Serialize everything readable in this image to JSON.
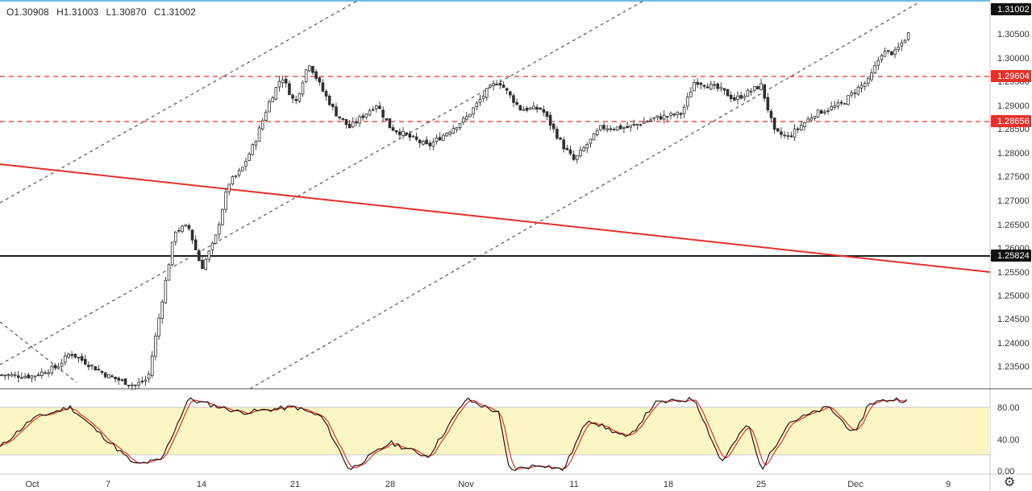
{
  "header": {
    "ohlc": {
      "open": "O1.30908",
      "high": "H1.31003",
      "low": "L1.30870",
      "close": "C1.31002"
    }
  },
  "colors": {
    "up": "#26a69a",
    "down": "#ef5350",
    "candle_body": "#2f2f2f",
    "candle_up_fill": "#ffffff",
    "trendline": "#e5312b",
    "support_line": "#1f1f1f",
    "resistance_dashed": "#e5312b",
    "channel_dashed": "#555555",
    "stoch_band": "#fbf6c3",
    "stoch_k": "#1a1a1a",
    "stoch_d": "#e5312b",
    "label_red": "#e5312b",
    "label_black": "#111111"
  },
  "price_axis": {
    "labels": [
      "1.30500",
      "1.30000",
      "1.29500",
      "1.29000",
      "1.28500",
      "1.28000",
      "1.27500",
      "1.27000",
      "1.26500",
      "1.26000",
      "1.25500",
      "1.25000",
      "1.24500",
      "1.24000",
      "1.23500"
    ],
    "badges": [
      {
        "text": "1.31002",
        "style": "black"
      },
      {
        "text": "1.29604",
        "style": "red"
      },
      {
        "text": "1.28656",
        "style": "red"
      },
      {
        "text": "1.25824",
        "style": "black"
      }
    ]
  },
  "stoch_axis": {
    "labels": [
      "80.00",
      "40.00",
      "0.00"
    ]
  },
  "time_axis": {
    "labels": [
      "Oct",
      "7",
      "14",
      "21",
      "28",
      "Nov",
      "11",
      "18",
      "25",
      "Dec",
      "9"
    ]
  },
  "chart_data": {
    "type": "candlestick",
    "symbol_pair_ohlc_last": {
      "open": 1.30908,
      "high": 1.31003,
      "low": 1.3087,
      "close": 1.31002
    },
    "ylim": [
      1.2298,
      1.3127
    ],
    "horizontal_lines": [
      {
        "price": 1.29604,
        "style": "dashed",
        "color": "red"
      },
      {
        "price": 1.28656,
        "style": "dashed",
        "color": "red"
      },
      {
        "price": 1.25824,
        "style": "solid",
        "color": "black"
      }
    ],
    "trendline": {
      "from": {
        "x": "Sep 23",
        "y": 1.2775
      },
      "to": {
        "x": "Dec 12",
        "y": 1.2548
      }
    },
    "close_path": [
      {
        "x": "Sep 26",
        "y": 1.2328
      },
      {
        "x": "Oct 1",
        "y": 1.2325
      },
      {
        "x": "Oct 3",
        "y": 1.2345
      },
      {
        "x": "Oct 4",
        "y": 1.2375
      },
      {
        "x": "Oct 7",
        "y": 1.2325
      },
      {
        "x": "Oct 9",
        "y": 1.2305
      },
      {
        "x": "Oct 10",
        "y": 1.232
      },
      {
        "x": "Oct 11",
        "y": 1.248
      },
      {
        "x": "Oct 12",
        "y": 1.2635
      },
      {
        "x": "Oct 13",
        "y": 1.2645
      },
      {
        "x": "Oct 14",
        "y": 1.2555
      },
      {
        "x": "Oct 15",
        "y": 1.2615
      },
      {
        "x": "Oct 16",
        "y": 1.2735
      },
      {
        "x": "Oct 17",
        "y": 1.2765
      },
      {
        "x": "Oct 18",
        "y": 1.2825
      },
      {
        "x": "Oct 19",
        "y": 1.2905
      },
      {
        "x": "Oct 20",
        "y": 1.2965
      },
      {
        "x": "Oct 21",
        "y": 1.2905
      },
      {
        "x": "Oct 22",
        "y": 1.2995
      },
      {
        "x": "Oct 23",
        "y": 1.2935
      },
      {
        "x": "Oct 24",
        "y": 1.2885
      },
      {
        "x": "Oct 25",
        "y": 1.2855
      },
      {
        "x": "Oct 27",
        "y": 1.2905
      },
      {
        "x": "Oct 28",
        "y": 1.2855
      },
      {
        "x": "Oct 30",
        "y": 1.2815
      },
      {
        "x": "Nov 1",
        "y": 1.2875
      },
      {
        "x": "Nov 3",
        "y": 1.2935
      },
      {
        "x": "Nov 4",
        "y": 1.2955
      },
      {
        "x": "Nov 6",
        "y": 1.2895
      },
      {
        "x": "Nov 8",
        "y": 1.2895
      },
      {
        "x": "Nov 10",
        "y": 1.2815
      },
      {
        "x": "Nov 11",
        "y": 1.2785
      },
      {
        "x": "Nov 13",
        "y": 1.2855
      },
      {
        "x": "Nov 15",
        "y": 1.2855
      },
      {
        "x": "Nov 17",
        "y": 1.2875
      },
      {
        "x": "Nov 19",
        "y": 1.2885
      },
      {
        "x": "Nov 20",
        "y": 1.2955
      },
      {
        "x": "Nov 22",
        "y": 1.2935
      },
      {
        "x": "Nov 23",
        "y": 1.2915
      },
      {
        "x": "Nov 25",
        "y": 1.2945
      },
      {
        "x": "Nov 26",
        "y": 1.2845
      },
      {
        "x": "Nov 27",
        "y": 1.2835
      },
      {
        "x": "Nov 29",
        "y": 1.2885
      },
      {
        "x": "Dec 1",
        "y": 1.2905
      },
      {
        "x": "Dec 2",
        "y": 1.2935
      },
      {
        "x": "Dec 3",
        "y": 1.2955
      },
      {
        "x": "Dec 4",
        "y": 1.3015
      },
      {
        "x": "Dec 5",
        "y": 1.3015
      },
      {
        "x": "Dec 6",
        "y": 1.3055
      },
      {
        "x": "Dec 7",
        "y": 1.31
      }
    ],
    "indicator": {
      "name": "stochastic",
      "levels": [
        20,
        80
      ],
      "ylim": [
        0,
        105
      ],
      "k_path": [
        {
          "x": "Sep 23",
          "y": 10
        },
        {
          "x": "Sep 26",
          "y": 28
        },
        {
          "x": "Oct 1",
          "y": 70
        },
        {
          "x": "Oct 4",
          "y": 85
        },
        {
          "x": "Oct 9",
          "y": 12
        },
        {
          "x": "Oct 11",
          "y": 18
        },
        {
          "x": "Oct 13",
          "y": 95
        },
        {
          "x": "Oct 17",
          "y": 78
        },
        {
          "x": "Oct 21",
          "y": 85
        },
        {
          "x": "Oct 23",
          "y": 72
        },
        {
          "x": "Oct 25",
          "y": 5
        },
        {
          "x": "Oct 28",
          "y": 40
        },
        {
          "x": "Oct 30",
          "y": 22
        },
        {
          "x": "Nov 1",
          "y": 95
        },
        {
          "x": "Nov 4",
          "y": 78
        },
        {
          "x": "Nov 5",
          "y": 5
        },
        {
          "x": "Nov 8",
          "y": 12
        },
        {
          "x": "Nov 10",
          "y": 5
        },
        {
          "x": "Nov 12",
          "y": 70
        },
        {
          "x": "Nov 15",
          "y": 45
        },
        {
          "x": "Nov 17",
          "y": 90
        },
        {
          "x": "Nov 20",
          "y": 95
        },
        {
          "x": "Nov 22",
          "y": 15
        },
        {
          "x": "Nov 24",
          "y": 65
        },
        {
          "x": "Nov 25",
          "y": 5
        },
        {
          "x": "Nov 27",
          "y": 65
        },
        {
          "x": "Nov 30",
          "y": 85
        },
        {
          "x": "Dec 2",
          "y": 50
        },
        {
          "x": "Dec 3",
          "y": 90
        },
        {
          "x": "Dec 5",
          "y": 95
        },
        {
          "x": "Dec 7",
          "y": 90
        }
      ]
    }
  }
}
